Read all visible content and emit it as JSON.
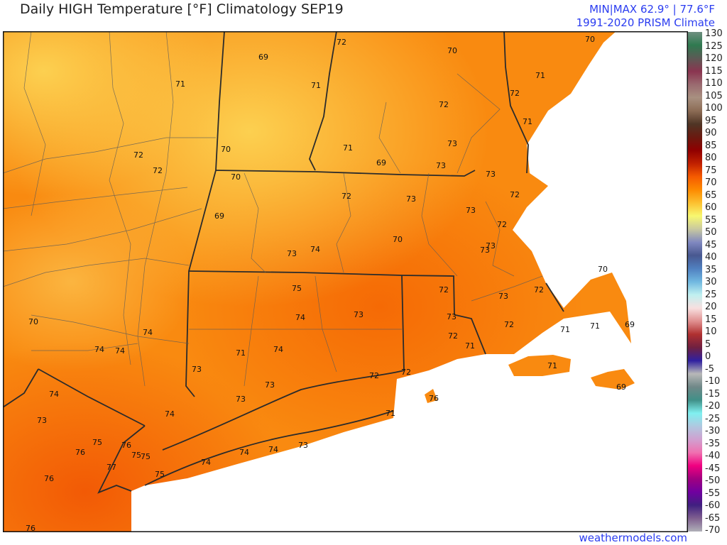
{
  "header": {
    "title": "Daily HIGH Temperature [°F]  Climatology SEP19",
    "minmax": "MIN|MAX 62.9°  |  77.6°F",
    "source": "1991-2020 PRISM Climate"
  },
  "footer": {
    "site": "weathermodels.com"
  },
  "colors": {
    "land_base": "#f98a10",
    "warm": "#f56a05",
    "cool": "#fbc84a",
    "ocean": "#ffffff",
    "boundary": "#2b2b2b",
    "text_accent": "#2a3cf0"
  },
  "colorbar": {
    "labels": [
      "130",
      "125",
      "120",
      "115",
      "110",
      "105",
      "100",
      "95",
      "90",
      "85",
      "80",
      "75",
      "70",
      "65",
      "60",
      "55",
      "50",
      "45",
      "40",
      "35",
      "30",
      "25",
      "20",
      "15",
      "10",
      "5",
      "0",
      "-5",
      "-10",
      "-15",
      "-20",
      "-25",
      "-30",
      "-35",
      "-40",
      "-45",
      "-50",
      "-55",
      "-60",
      "-65",
      "-70"
    ],
    "stops": [
      "#6f8f80",
      "#2f7a50",
      "#5c5a55",
      "#8a3550",
      "#9a6a70",
      "#a89080",
      "#8c6c55",
      "#4f3525",
      "#6a1a10",
      "#900000",
      "#c02000",
      "#f55a00",
      "#fd8a00",
      "#fcc030",
      "#f8f870",
      "#c8c8a0",
      "#8088c0",
      "#485890",
      "#5080c0",
      "#70b8e0",
      "#c0f0f0",
      "#f8e0e0",
      "#e09090",
      "#b03030",
      "#702040",
      "#3020a0",
      "#b8b8b8",
      "#708888",
      "#409088",
      "#80f0f0",
      "#b0c8e0",
      "#d0a0d0",
      "#f070b0",
      "#f00080",
      "#a00080",
      "#7000a0",
      "#402080",
      "#806090",
      "#b0b0b8"
    ]
  },
  "map": {
    "station_values": [
      "69",
      "72",
      "70",
      "70",
      "71",
      "71",
      "71",
      "72",
      "72",
      "71",
      "72",
      "72",
      "70",
      "71",
      "69",
      "73",
      "73",
      "73",
      "70",
      "72",
      "73",
      "72",
      "73",
      "69",
      "72",
      "73",
      "73",
      "70",
      "74",
      "73",
      "70",
      "75",
      "72",
      "72",
      "73",
      "74",
      "73",
      "73",
      "72",
      "72",
      "71",
      "71",
      "69",
      "70",
      "74",
      "74",
      "74",
      "71",
      "74",
      "71",
      "73",
      "72",
      "72",
      "71",
      "73",
      "73",
      "69",
      "74",
      "76",
      "74",
      "71",
      "73",
      "75",
      "76",
      "76",
      "75",
      "75",
      "73",
      "74",
      "74",
      "74",
      "77",
      "75",
      "76",
      "76"
    ]
  }
}
